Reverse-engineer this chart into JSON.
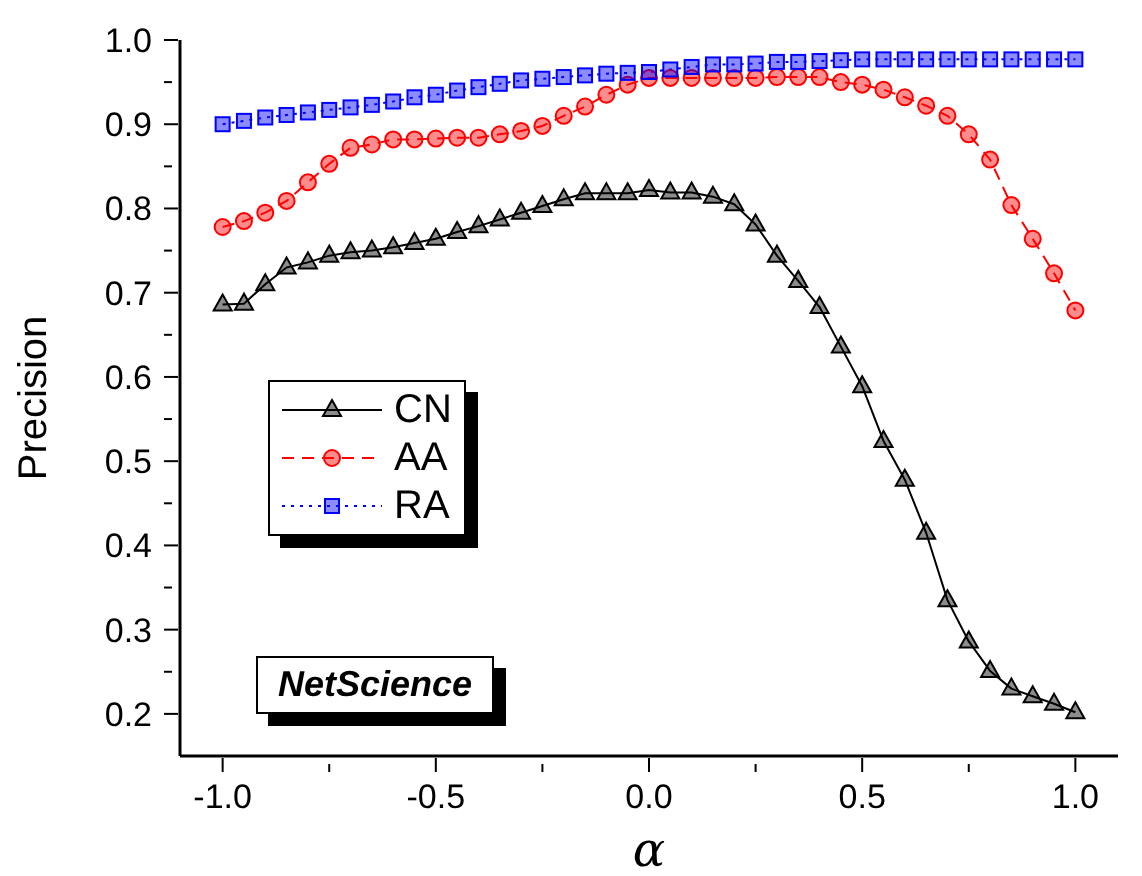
{
  "chart_data": {
    "type": "line",
    "xlabel": "α",
    "ylabel": "Precision",
    "x": [
      -1.0,
      -0.95,
      -0.9,
      -0.85,
      -0.8,
      -0.75,
      -0.7,
      -0.65,
      -0.6,
      -0.55,
      -0.5,
      -0.45,
      -0.4,
      -0.35,
      -0.3,
      -0.25,
      -0.2,
      -0.15,
      -0.1,
      -0.05,
      0.0,
      0.05,
      0.1,
      0.15,
      0.2,
      0.25,
      0.3,
      0.35,
      0.4,
      0.45,
      0.5,
      0.55,
      0.6,
      0.65,
      0.7,
      0.75,
      0.8,
      0.85,
      0.9,
      0.95,
      1.0
    ],
    "series": [
      {
        "name": "CN",
        "color": "#000000",
        "marker": "triangle",
        "line_style": "solid",
        "values": [
          0.686,
          0.687,
          0.71,
          0.73,
          0.736,
          0.744,
          0.748,
          0.75,
          0.754,
          0.759,
          0.764,
          0.772,
          0.779,
          0.787,
          0.795,
          0.803,
          0.811,
          0.818,
          0.818,
          0.818,
          0.822,
          0.819,
          0.819,
          0.814,
          0.805,
          0.781,
          0.744,
          0.714,
          0.683,
          0.636,
          0.589,
          0.524,
          0.478,
          0.415,
          0.335,
          0.286,
          0.251,
          0.23,
          0.221,
          0.212,
          0.202
        ]
      },
      {
        "name": "AA",
        "color": "#ff0000",
        "marker": "circle",
        "line_style": "dashed",
        "values": [
          0.778,
          0.785,
          0.795,
          0.809,
          0.831,
          0.853,
          0.872,
          0.876,
          0.882,
          0.882,
          0.883,
          0.884,
          0.884,
          0.888,
          0.892,
          0.898,
          0.91,
          0.921,
          0.935,
          0.947,
          0.955,
          0.955,
          0.955,
          0.955,
          0.955,
          0.955,
          0.956,
          0.956,
          0.956,
          0.95,
          0.947,
          0.941,
          0.932,
          0.922,
          0.91,
          0.888,
          0.858,
          0.804,
          0.764,
          0.723,
          0.679
        ]
      },
      {
        "name": "RA",
        "color": "#0000ff",
        "marker": "square",
        "line_style": "dotted",
        "values": [
          0.9,
          0.904,
          0.908,
          0.911,
          0.914,
          0.917,
          0.92,
          0.923,
          0.927,
          0.932,
          0.935,
          0.94,
          0.944,
          0.948,
          0.952,
          0.954,
          0.956,
          0.958,
          0.96,
          0.961,
          0.962,
          0.965,
          0.968,
          0.971,
          0.971,
          0.972,
          0.974,
          0.974,
          0.975,
          0.976,
          0.977,
          0.977,
          0.977,
          0.977,
          0.977,
          0.977,
          0.977,
          0.977,
          0.977,
          0.977,
          0.977
        ]
      }
    ],
    "xlim": [
      -1.1,
      1.1
    ],
    "xticks": [
      {
        "value": -1.0,
        "label": "-1.0"
      },
      {
        "value": -0.75,
        "label": null
      },
      {
        "value": -0.5,
        "label": "-0.5"
      },
      {
        "value": -0.25,
        "label": null
      },
      {
        "value": 0.0,
        "label": "0.0"
      },
      {
        "value": 0.25,
        "label": null
      },
      {
        "value": 0.5,
        "label": "0.5"
      },
      {
        "value": 0.75,
        "label": null
      },
      {
        "value": 1.0,
        "label": "1.0"
      }
    ],
    "ylim": [
      0.15,
      1.0
    ],
    "yticks": [
      0.2,
      {
        "value": 0.25,
        "label": null
      },
      0.3,
      {
        "value": 0.35,
        "label": null
      },
      0.4,
      {
        "value": 0.45,
        "label": null
      },
      0.5,
      {
        "value": 0.55,
        "label": null
      },
      0.6,
      {
        "value": 0.65,
        "label": null
      },
      0.7,
      {
        "value": 0.75,
        "label": null
      },
      0.8,
      {
        "value": 0.85,
        "label": null
      },
      0.9,
      {
        "value": 0.95,
        "label": null
      },
      {
        "value": 1.0,
        "label": "1.0"
      }
    ],
    "legend": "left",
    "annotations": [
      "NetScience"
    ]
  }
}
